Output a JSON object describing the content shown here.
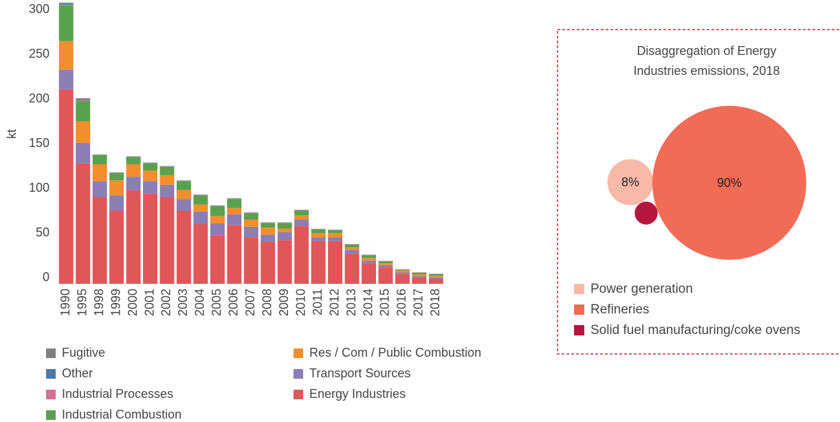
{
  "chart_data": [
    {
      "type": "stacked_bar",
      "ylabel": "kt",
      "categories": [
        "1990",
        "1995",
        "1998",
        "1999",
        "2000",
        "2001",
        "2002",
        "2003",
        "2004",
        "2005",
        "2006",
        "2007",
        "2008",
        "2009",
        "2010",
        "2011",
        "2012",
        "2013",
        "2014",
        "2015",
        "2016",
        "2017",
        "2018"
      ],
      "series": [
        {
          "name": "Energy Industries",
          "color": "#e15759",
          "values": [
            218,
            135,
            97,
            82,
            105,
            101,
            97,
            82,
            67,
            54,
            66,
            52,
            47,
            49,
            65,
            48,
            48,
            34,
            23,
            18,
            11,
            7,
            5
          ]
        },
        {
          "name": "Transport Sources",
          "color": "#8a7eb5",
          "values": [
            22,
            23,
            18,
            17,
            15,
            14,
            14,
            13,
            14,
            14,
            12,
            12,
            8,
            9,
            7,
            4,
            4,
            4,
            3,
            3,
            2,
            1.5,
            2
          ]
        },
        {
          "name": "Res / Com / Public Combustion",
          "color": "#f28e2b",
          "values": [
            32,
            24,
            19,
            17,
            14,
            12,
            11,
            10,
            8,
            8,
            7,
            8,
            8,
            4,
            5,
            5,
            5,
            3,
            3,
            2,
            2,
            2,
            2
          ]
        },
        {
          "name": "Industrial Combustion",
          "color": "#59a14f",
          "values": [
            40,
            23,
            10,
            8,
            8,
            8,
            9,
            10,
            10,
            11,
            10,
            7,
            5,
            6,
            5,
            4,
            3,
            3,
            3,
            2,
            1,
            2,
            2
          ]
        },
        {
          "name": "Industrial Processes",
          "color": "#d37295",
          "values": [
            0.5,
            0.5,
            0.3,
            0.3,
            0.3,
            0.3,
            0.3,
            0.3,
            0.3,
            0.3,
            0.3,
            0.3,
            0.3,
            0.3,
            0.3,
            0.2,
            0.2,
            0.2,
            0.2,
            0.2,
            0.1,
            0.1,
            0.1
          ]
        },
        {
          "name": "Other",
          "color": "#4e79a7",
          "values": [
            1,
            1,
            0.3,
            0.3,
            0.3,
            0.3,
            0.3,
            0.3,
            0.3,
            0.3,
            0.3,
            0.3,
            0.3,
            0.3,
            0.3,
            0.2,
            0.2,
            0.2,
            0.2,
            0.2,
            0.1,
            0.1,
            0.1
          ]
        },
        {
          "name": "Fugitive",
          "color": "#7f7f7f",
          "values": [
            1.5,
            1.5,
            0.4,
            0.4,
            0.4,
            0.4,
            0.4,
            0.4,
            0.4,
            0.4,
            0.4,
            0.4,
            0.4,
            0.4,
            0.4,
            0.3,
            0.3,
            0.3,
            0.3,
            0.3,
            0.2,
            0.2,
            0.2
          ]
        }
      ],
      "ylim": [
        0,
        318
      ],
      "yticks": [
        0,
        50,
        100,
        150,
        200,
        250,
        300
      ],
      "grid": false
    },
    {
      "type": "bubble",
      "title": [
        "Disaggregation of Energy",
        "Industries emissions, 2018"
      ],
      "categories": [
        "Power generation",
        "Refineries",
        "Solid fuel manufacturing/coke ovens"
      ],
      "values": [
        8,
        90,
        2
      ],
      "value_labels": [
        "8%",
        "90%",
        null
      ],
      "colors": [
        "#f9b9a8",
        "#f26b55",
        "#b5163e"
      ]
    }
  ]
}
